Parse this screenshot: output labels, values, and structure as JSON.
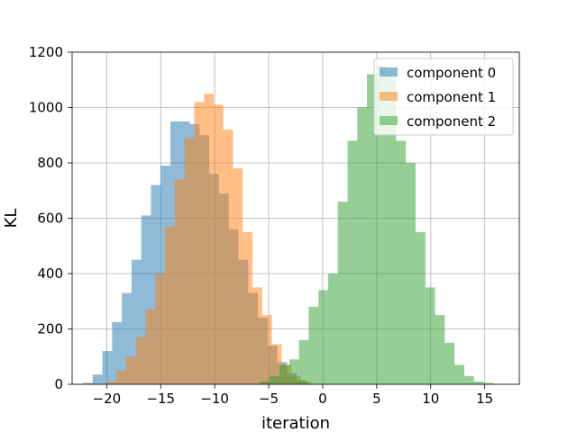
{
  "chart_data": {
    "type": "histogram",
    "title": "",
    "xlabel": "iteration",
    "ylabel": "KL",
    "xlim": [
      -23.2,
      18.2
    ],
    "ylim": [
      0,
      1200
    ],
    "xticks": [
      -20,
      -15,
      -10,
      -5,
      0,
      5,
      10,
      15
    ],
    "xtick_labels": [
      "−20",
      "−15",
      "−10",
      "−5",
      "0",
      "5",
      "10",
      "15"
    ],
    "yticks": [
      0,
      200,
      400,
      600,
      800,
      1000,
      1200
    ],
    "grid": true,
    "legend_position": "top-right",
    "series": [
      {
        "name": "component 0",
        "color": "#1f77b4",
        "opacity": 0.5,
        "bin_width": 0.9,
        "bins": [
          [
            -22.2,
            5
          ],
          [
            -21.3,
            35
          ],
          [
            -20.4,
            120
          ],
          [
            -19.5,
            225
          ],
          [
            -18.6,
            330
          ],
          [
            -17.7,
            450
          ],
          [
            -16.8,
            610
          ],
          [
            -15.9,
            720
          ],
          [
            -15.0,
            790
          ],
          [
            -14.1,
            950
          ],
          [
            -13.2,
            950
          ],
          [
            -12.3,
            940
          ],
          [
            -11.4,
            900
          ],
          [
            -10.5,
            760
          ],
          [
            -9.6,
            690
          ],
          [
            -8.7,
            560
          ],
          [
            -7.8,
            450
          ],
          [
            -6.9,
            330
          ],
          [
            -6.0,
            240
          ],
          [
            -5.1,
            140
          ],
          [
            -4.2,
            80
          ],
          [
            -3.3,
            40
          ],
          [
            -2.4,
            15
          ]
        ]
      },
      {
        "name": "component 1",
        "color": "#ff7f0e",
        "opacity": 0.5,
        "bin_width": 0.9,
        "bins": [
          [
            -20.0,
            10
          ],
          [
            -19.1,
            50
          ],
          [
            -18.2,
            100
          ],
          [
            -17.3,
            170
          ],
          [
            -16.4,
            270
          ],
          [
            -15.5,
            400
          ],
          [
            -14.6,
            570
          ],
          [
            -13.7,
            740
          ],
          [
            -12.8,
            890
          ],
          [
            -11.9,
            1020
          ],
          [
            -11.0,
            1050
          ],
          [
            -10.1,
            1010
          ],
          [
            -9.2,
            920
          ],
          [
            -8.3,
            780
          ],
          [
            -7.4,
            550
          ],
          [
            -6.5,
            350
          ],
          [
            -5.6,
            250
          ],
          [
            -4.7,
            145
          ],
          [
            -3.8,
            70
          ],
          [
            -2.9,
            30
          ],
          [
            -2.0,
            10
          ]
        ]
      },
      {
        "name": "component 2",
        "color": "#2ca02c",
        "opacity": 0.5,
        "bin_width": 0.9,
        "bins": [
          [
            -5.8,
            10
          ],
          [
            -4.9,
            30
          ],
          [
            -4.0,
            70
          ],
          [
            -3.1,
            90
          ],
          [
            -2.2,
            160
          ],
          [
            -1.3,
            280
          ],
          [
            -0.4,
            340
          ],
          [
            0.5,
            400
          ],
          [
            1.4,
            660
          ],
          [
            2.3,
            880
          ],
          [
            3.2,
            1000
          ],
          [
            4.1,
            1120
          ],
          [
            5.0,
            1150
          ],
          [
            5.9,
            1130
          ],
          [
            6.8,
            880
          ],
          [
            7.7,
            800
          ],
          [
            8.6,
            550
          ],
          [
            9.5,
            350
          ],
          [
            10.4,
            250
          ],
          [
            11.3,
            150
          ],
          [
            12.2,
            70
          ],
          [
            13.1,
            30
          ],
          [
            14.0,
            10
          ],
          [
            14.9,
            5
          ]
        ]
      }
    ]
  }
}
